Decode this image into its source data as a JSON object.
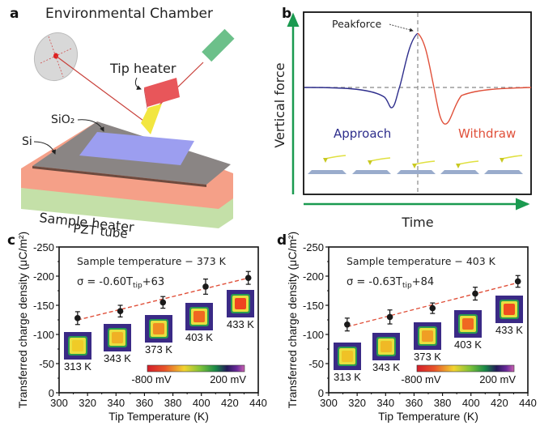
{
  "panels": {
    "a": {
      "letter": "a",
      "title": "Environmental Chamber",
      "labels": {
        "tip_heater": "Tip heater",
        "sio2": "SiO₂",
        "si": "Si",
        "sample_heater": "Sample heater",
        "pzt": "PZT tube"
      },
      "colors": {
        "laser": "#6cc08a",
        "tip_heater": "#e8565a",
        "tip": "#f2e640",
        "sio2": "#9c9ef0",
        "si": "#8a8584",
        "sample_heater": "#f5a088",
        "pzt": "#c4e0a8",
        "beam": "#c8403a",
        "detector": "#d8d8d8"
      }
    },
    "b": {
      "letter": "b",
      "annotation": "Peakforce",
      "approach_label": "Approach",
      "withdraw_label": "Withdraw",
      "ylabel": "Vertical force",
      "xlabel": "Time",
      "colors": {
        "approach": "#2e2e8c",
        "withdraw": "#e0503a",
        "axis_arrow": "#1a9a50"
      }
    }
  },
  "chart_data": [
    {
      "panel": "c",
      "type": "scatter",
      "title": "",
      "annotation": "Sample temperature − 373 K",
      "fit_label_prefix": "σ = -0.60T",
      "fit_label_sub": "tip",
      "fit_label_suffix": "+63",
      "fit": {
        "slope": 0.6,
        "intercept": -63
      },
      "xlabel": "Tip Temperature (K)",
      "ylabel": "Transferred charge density (μC/m²)",
      "xlim": [
        300,
        440
      ],
      "ylim": [
        0,
        -250
      ],
      "xticks": [
        300,
        320,
        340,
        360,
        380,
        400,
        420,
        440
      ],
      "yticks": [
        0,
        -50,
        -100,
        -150,
        -200,
        -250
      ],
      "x": [
        313,
        343,
        373,
        403,
        433
      ],
      "y": [
        -128,
        -140,
        -155,
        -182,
        -197
      ],
      "yerr": [
        11,
        10,
        10,
        13,
        11
      ],
      "insets": [
        {
          "label": "313 K",
          "level": 0.15
        },
        {
          "label": "343 K",
          "level": 0.3
        },
        {
          "label": "373 K",
          "level": 0.5
        },
        {
          "label": "403 K",
          "level": 0.7
        },
        {
          "label": "433 K",
          "level": 0.9
        }
      ],
      "colorbar": {
        "min_label": "-800 mV",
        "max_label": "200 mV"
      }
    },
    {
      "panel": "d",
      "type": "scatter",
      "title": "",
      "annotation": "Sample temperature − 403 K",
      "fit_label_prefix": "σ = -0.63T",
      "fit_label_sub": "tip",
      "fit_label_suffix": "+84",
      "fit": {
        "slope": 0.63,
        "intercept": -84
      },
      "xlabel": "Tip Temperature (K)",
      "ylabel": "Transferred charge density (μC/m²)",
      "xlim": [
        300,
        440
      ],
      "ylim": [
        0,
        -250
      ],
      "xticks": [
        300,
        320,
        340,
        360,
        380,
        400,
        420,
        440
      ],
      "yticks": [
        0,
        -50,
        -100,
        -150,
        -200,
        -250
      ],
      "x": [
        313,
        343,
        373,
        403,
        433
      ],
      "y": [
        -117,
        -130,
        -145,
        -170,
        -191
      ],
      "yerr": [
        11,
        12,
        9,
        11,
        10
      ],
      "insets": [
        {
          "label": "313 K",
          "level": 0.2
        },
        {
          "label": "343 K",
          "level": 0.25
        },
        {
          "label": "373 K",
          "level": 0.4
        },
        {
          "label": "403 K",
          "level": 0.7
        },
        {
          "label": "433 K",
          "level": 0.85
        }
      ],
      "colorbar": {
        "min_label": "-800 mV",
        "max_label": "200 mV"
      }
    }
  ]
}
